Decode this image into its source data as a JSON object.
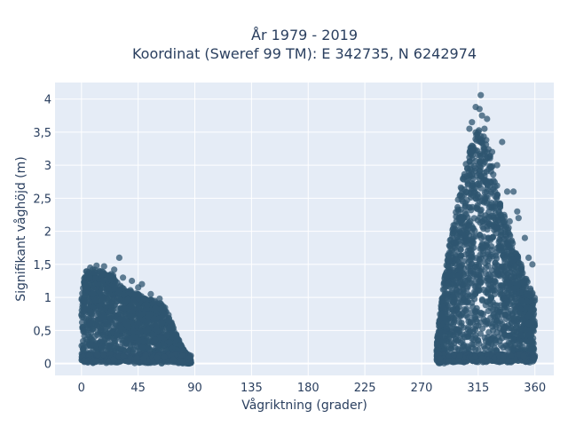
{
  "chart_data": {
    "type": "scatter",
    "title_lines": [
      "År 1979 - 2019",
      "Koordinat (Sweref 99 TM): E 342735, N 6242974"
    ],
    "xlabel": "Vågriktning (grader)",
    "ylabel": "Signifikant våghöjd (m)",
    "xlim": [
      -21,
      375
    ],
    "ylim": [
      -0.18,
      4.25
    ],
    "x_ticks": [
      0,
      45,
      90,
      135,
      180,
      225,
      270,
      315,
      360
    ],
    "y_ticks": [
      0,
      0.5,
      1,
      1.5,
      2,
      2.5,
      3,
      3.5,
      4
    ],
    "y_tick_labels": [
      "0",
      "0,5",
      "1",
      "1,5",
      "2",
      "2,5",
      "3",
      "3,5",
      "4"
    ],
    "grid": true,
    "background_color": "#e5ecf6",
    "grid_color": "#ffffff",
    "marker_color": "#2f5570",
    "clusters": [
      {
        "direction_range": [
          0,
          87
        ],
        "envelope": [
          [
            0,
            1.35
          ],
          [
            5,
            1.42
          ],
          [
            10,
            1.45
          ],
          [
            15,
            1.4
          ],
          [
            20,
            1.38
          ],
          [
            25,
            1.35
          ],
          [
            30,
            1.2
          ],
          [
            40,
            1.1
          ],
          [
            50,
            1.0
          ],
          [
            58,
            0.95
          ],
          [
            65,
            0.9
          ],
          [
            70,
            0.7
          ],
          [
            75,
            0.45
          ],
          [
            80,
            0.25
          ],
          [
            85,
            0.1
          ],
          [
            87,
            0.05
          ]
        ],
        "outliers": [
          [
            7,
            1.45
          ],
          [
            12,
            1.48
          ],
          [
            18,
            1.47
          ],
          [
            26,
            1.42
          ],
          [
            30,
            1.6
          ],
          [
            33,
            1.3
          ],
          [
            40,
            1.25
          ],
          [
            45,
            1.15
          ],
          [
            48,
            1.2
          ],
          [
            55,
            1.05
          ],
          [
            62,
            0.98
          ]
        ]
      },
      {
        "direction_range": [
          282,
          360
        ],
        "envelope": [
          [
            282,
            0.3
          ],
          [
            285,
            0.8
          ],
          [
            290,
            1.6
          ],
          [
            295,
            2.1
          ],
          [
            300,
            2.6
          ],
          [
            305,
            3.0
          ],
          [
            310,
            3.35
          ],
          [
            315,
            3.6
          ],
          [
            320,
            3.5
          ],
          [
            325,
            3.1
          ],
          [
            330,
            2.7
          ],
          [
            335,
            2.3
          ],
          [
            340,
            2.0
          ],
          [
            345,
            1.7
          ],
          [
            350,
            1.45
          ],
          [
            355,
            1.2
          ],
          [
            360,
            1.0
          ]
        ],
        "outliers": [
          [
            310,
            3.65
          ],
          [
            313,
            3.88
          ],
          [
            316,
            3.85
          ],
          [
            318,
            3.75
          ],
          [
            320,
            3.55
          ],
          [
            326,
            3.2
          ],
          [
            330,
            3.0
          ],
          [
            334,
            3.35
          ],
          [
            338,
            2.6
          ],
          [
            343,
            2.6
          ],
          [
            347,
            2.2
          ],
          [
            352,
            1.9
          ],
          [
            355,
            1.6
          ],
          [
            358,
            1.5
          ],
          [
            322,
            3.7
          ],
          [
            308,
            3.55
          ],
          [
            317,
            4.06
          ],
          [
            346,
            2.3
          ],
          [
            340,
            2.15
          ]
        ]
      }
    ]
  }
}
